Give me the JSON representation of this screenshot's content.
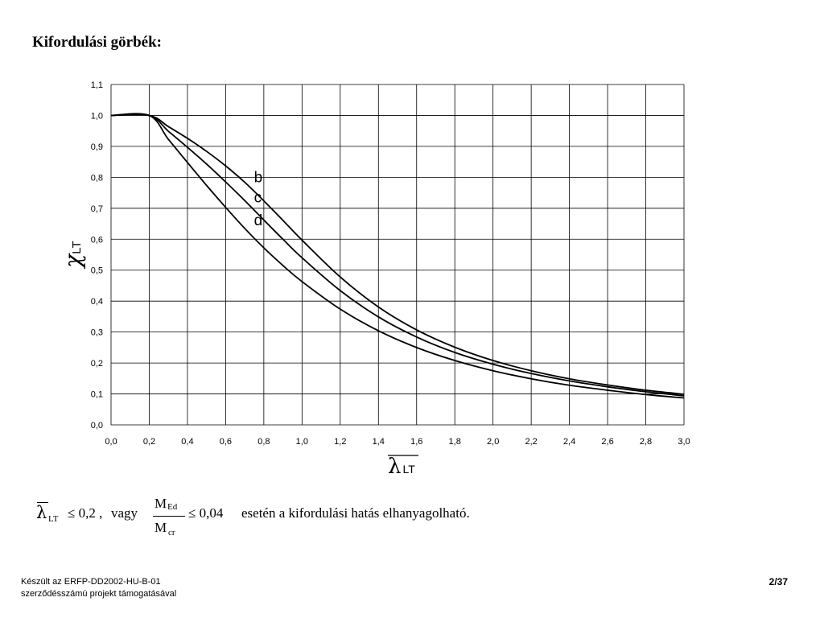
{
  "slide": {
    "title": "Kifordulási görbék:",
    "formula": {
      "lambda": "λ",
      "lambda_sub": "LT",
      "le1": "≤ 0,2 ,",
      "vagy": "vagy",
      "num": "M",
      "num_sub": "Ed",
      "den": "M",
      "den_sub": "cr",
      "le2": "≤ 0,04",
      "text": "esetén a kifordulási hatás elhanyagolható."
    },
    "footer": {
      "line1": "Készült az ERFP-DD2002-HU-B-01",
      "line2": "szerződésszámú projekt támogatásával",
      "page": "2/37"
    }
  },
  "chart_data": {
    "type": "line",
    "title": "",
    "xlabel": "λ",
    "xlabel_sub": "LT",
    "ylabel": "χ",
    "ylabel_sub": "LT",
    "xlim": [
      0,
      3
    ],
    "ylim": [
      0,
      1.1
    ],
    "xticks": [
      "0,0",
      "0,2",
      "0,4",
      "0,6",
      "0,8",
      "1,0",
      "1,2",
      "1,4",
      "1,6",
      "1,8",
      "2,0",
      "2,2",
      "2,4",
      "2,6",
      "2,8",
      "3,0"
    ],
    "yticks": [
      "0,0",
      "0,1",
      "0,2",
      "0,3",
      "0,4",
      "0,5",
      "0,6",
      "0,7",
      "0,8",
      "0,9",
      "1,0",
      "1,1"
    ],
    "grid": true,
    "series": [
      {
        "name": "b",
        "x": [
          0,
          0.2,
          0.3,
          0.4,
          0.5,
          0.6,
          0.7,
          0.8,
          0.9,
          1.0,
          1.2,
          1.4,
          1.6,
          1.8,
          2.0,
          2.2,
          2.4,
          2.6,
          2.8,
          3.0
        ],
        "y": [
          1.0,
          1.0,
          0.964,
          0.926,
          0.884,
          0.837,
          0.784,
          0.724,
          0.661,
          0.597,
          0.478,
          0.381,
          0.307,
          0.251,
          0.208,
          0.175,
          0.149,
          0.129,
          0.112,
          0.099
        ]
      },
      {
        "name": "c",
        "x": [
          0,
          0.2,
          0.3,
          0.4,
          0.5,
          0.6,
          0.7,
          0.8,
          0.9,
          1.0,
          1.2,
          1.4,
          1.6,
          1.8,
          2.0,
          2.2,
          2.4,
          2.6,
          2.8,
          3.0
        ],
        "y": [
          1.0,
          1.0,
          0.949,
          0.897,
          0.843,
          0.785,
          0.725,
          0.662,
          0.6,
          0.54,
          0.434,
          0.349,
          0.284,
          0.234,
          0.196,
          0.166,
          0.142,
          0.123,
          0.107,
          0.094
        ]
      },
      {
        "name": "d",
        "x": [
          0,
          0.2,
          0.3,
          0.4,
          0.5,
          0.6,
          0.7,
          0.8,
          0.9,
          1.0,
          1.2,
          1.4,
          1.6,
          1.8,
          2.0,
          2.2,
          2.4,
          2.6,
          2.8,
          3.0
        ],
        "y": [
          1.0,
          1.0,
          0.923,
          0.848,
          0.774,
          0.703,
          0.635,
          0.572,
          0.515,
          0.463,
          0.374,
          0.304,
          0.25,
          0.208,
          0.175,
          0.149,
          0.128,
          0.112,
          0.098,
          0.087
        ]
      }
    ],
    "annotations": [
      {
        "text": "b",
        "x": 0.74,
        "y": 0.8
      },
      {
        "text": "c",
        "x": 0.74,
        "y": 0.735
      },
      {
        "text": "d",
        "x": 0.74,
        "y": 0.66
      }
    ]
  }
}
